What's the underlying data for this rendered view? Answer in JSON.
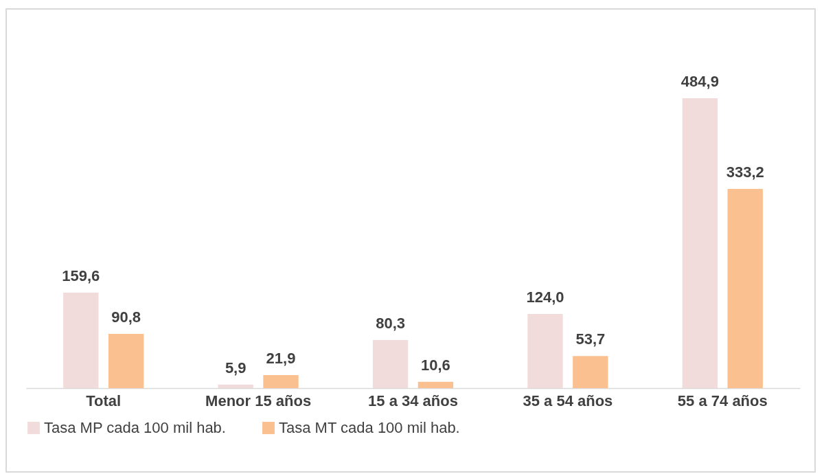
{
  "chart_data": {
    "type": "bar",
    "categories": [
      "Total",
      "Menor 15 años",
      "15 a 34 años",
      "35 a 54 años",
      "55 a 74 años"
    ],
    "series": [
      {
        "name": "Tasa MP cada 100 mil hab.",
        "color": "#f2dcdb",
        "values": [
          159.6,
          5.9,
          80.3,
          124.0,
          484.9
        ],
        "value_labels": [
          "159,6",
          "5,9",
          "80,3",
          "124,0",
          "484,9"
        ]
      },
      {
        "name": "Tasa MT cada 100 mil hab.",
        "color": "#fac090",
        "values": [
          90.8,
          21.9,
          10.6,
          53.7,
          333.2
        ],
        "value_labels": [
          "90,8",
          "21,9",
          "10,6",
          "53,7",
          "333,2"
        ]
      }
    ],
    "legend": "bottom",
    "tick_labels": "x"
  }
}
